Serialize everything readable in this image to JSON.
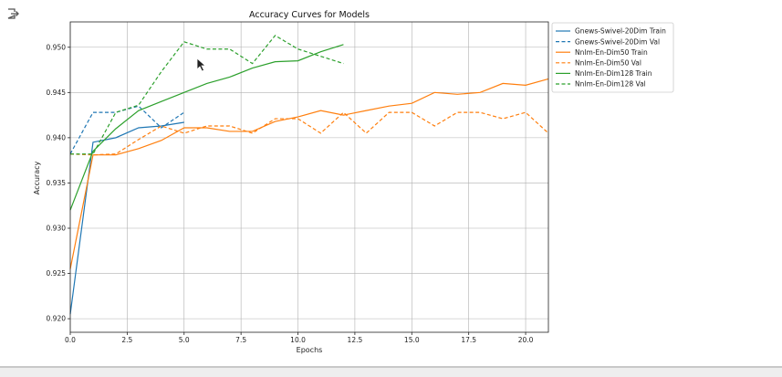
{
  "output_icon": "output-arrow-icon",
  "cursor_icon": "mouse-pointer-icon",
  "chart_data": {
    "type": "line",
    "title": "Accuracy Curves for Models",
    "xlabel": "Epochs",
    "ylabel": "Accuracy",
    "xlim": [
      0,
      21
    ],
    "ylim": [
      0.9185,
      0.9528
    ],
    "xticks": [
      0.0,
      2.5,
      5.0,
      7.5,
      10.0,
      12.5,
      15.0,
      17.5,
      20.0
    ],
    "xtick_labels": [
      "0.0",
      "2.5",
      "5.0",
      "7.5",
      "10.0",
      "12.5",
      "15.0",
      "17.5",
      "20.0"
    ],
    "yticks": [
      0.92,
      0.925,
      0.93,
      0.935,
      0.94,
      0.945,
      0.95
    ],
    "ytick_labels": [
      "0.920",
      "0.925",
      "0.930",
      "0.935",
      "0.940",
      "0.945",
      "0.950"
    ],
    "grid": true,
    "legend_position": "outside-top-right",
    "series": [
      {
        "name": "Gnews-Swivel-20Dim Train",
        "color": "#1f77b4",
        "style": "solid",
        "x": [
          0,
          1,
          2,
          3,
          4,
          5
        ],
        "y": [
          0.9205,
          0.9395,
          0.94,
          0.9411,
          0.9413,
          0.9417
        ]
      },
      {
        "name": "Gnews-Swivel-20Dim Val",
        "color": "#1f77b4",
        "style": "dashed",
        "x": [
          0,
          1,
          2,
          3,
          4,
          5
        ],
        "y": [
          0.9382,
          0.9428,
          0.9428,
          0.9435,
          0.9411,
          0.9428
        ]
      },
      {
        "name": "Nnlm-En-Dim50 Train",
        "color": "#ff7f0e",
        "style": "solid",
        "x": [
          0,
          1,
          2,
          3,
          4,
          5,
          6,
          7,
          8,
          9,
          10,
          11,
          12,
          13,
          14,
          15,
          16,
          17,
          18,
          19,
          20,
          21
        ],
        "y": [
          0.9255,
          0.9381,
          0.9381,
          0.9388,
          0.9397,
          0.9411,
          0.9411,
          0.9407,
          0.9407,
          0.9418,
          0.9423,
          0.943,
          0.9425,
          0.943,
          0.9435,
          0.9438,
          0.945,
          0.9448,
          0.945,
          0.946,
          0.9458,
          0.9465
        ]
      },
      {
        "name": "Nnlm-En-Dim50 Val",
        "color": "#ff7f0e",
        "style": "dashed",
        "x": [
          0,
          1,
          2,
          3,
          4,
          5,
          6,
          7,
          8,
          9,
          10,
          11,
          12,
          13,
          14,
          15,
          16,
          17,
          18,
          19,
          20,
          21
        ],
        "y": [
          0.9382,
          0.9381,
          0.9382,
          0.9398,
          0.9413,
          0.9405,
          0.9413,
          0.9413,
          0.9405,
          0.9421,
          0.9421,
          0.9405,
          0.9428,
          0.9405,
          0.9428,
          0.9428,
          0.9413,
          0.9428,
          0.9428,
          0.9421,
          0.9428,
          0.9405
        ]
      },
      {
        "name": "Nnlm-En-Dim128 Train",
        "color": "#2ca02c",
        "style": "solid",
        "x": [
          0,
          1,
          2,
          3,
          4,
          5,
          6,
          7,
          8,
          9,
          10,
          11,
          12
        ],
        "y": [
          0.932,
          0.9385,
          0.941,
          0.943,
          0.944,
          0.945,
          0.946,
          0.9467,
          0.9477,
          0.9484,
          0.9485,
          0.9495,
          0.9503
        ]
      },
      {
        "name": "Nnlm-En-Dim128 Val",
        "color": "#2ca02c",
        "style": "dashed",
        "x": [
          0,
          1,
          2,
          3,
          4,
          5,
          6,
          7,
          8,
          9,
          10,
          11,
          12
        ],
        "y": [
          0.9382,
          0.9382,
          0.9428,
          0.9436,
          0.9473,
          0.9506,
          0.9498,
          0.9498,
          0.9482,
          0.9513,
          0.9498,
          0.949,
          0.9482
        ]
      }
    ]
  }
}
